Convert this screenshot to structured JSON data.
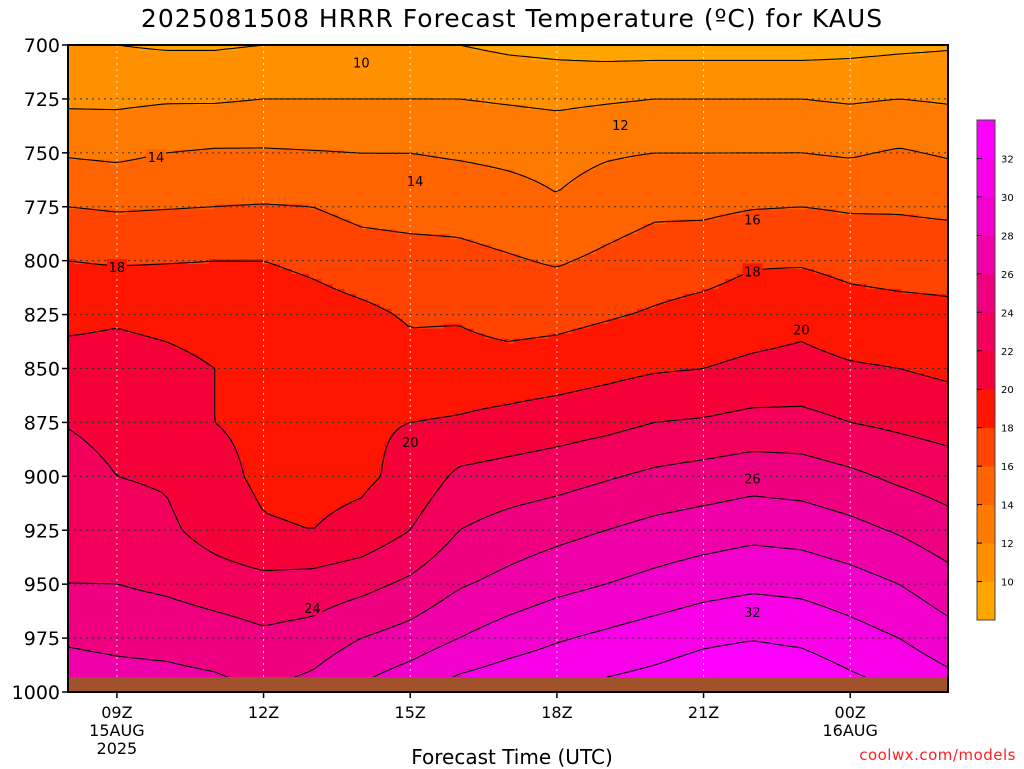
{
  "page": {
    "title": "2025081508 HRRR Forecast Temperature (ºC) for KAUS",
    "credit": "coolwx.com/models"
  },
  "chart_data": {
    "type": "heatmap",
    "title": "2025081508 HRRR Forecast Temperature (ºC) for KAUS",
    "xlabel": "Forecast Time (UTC)",
    "ylabel": "",
    "x_hours": [
      8,
      9,
      10,
      11,
      12,
      13,
      14,
      15,
      16,
      17,
      18,
      19,
      20,
      21,
      22,
      23,
      24,
      25,
      26
    ],
    "x_range": [
      8,
      26
    ],
    "y_range": [
      700,
      1000
    ],
    "y_scale": "pressure-hPa-inverted",
    "x_ticks": [
      {
        "hour": 9,
        "labels": [
          "09Z",
          "15AUG",
          "2025"
        ]
      },
      {
        "hour": 12,
        "labels": [
          "12Z"
        ]
      },
      {
        "hour": 15,
        "labels": [
          "15Z"
        ]
      },
      {
        "hour": 18,
        "labels": [
          "18Z"
        ]
      },
      {
        "hour": 21,
        "labels": [
          "21Z"
        ]
      },
      {
        "hour": 24,
        "labels": [
          "00Z",
          "16AUG"
        ]
      }
    ],
    "y_ticks": [
      "700",
      "725",
      "750",
      "775",
      "800",
      "825",
      "850",
      "875",
      "900",
      "925",
      "950",
      "975",
      "1000"
    ],
    "grid": true,
    "ground_color": "#a0522d",
    "contour_interval": 2,
    "contour_labels": [
      {
        "text": "10",
        "hour": 14.0,
        "level": 708
      },
      {
        "text": "12",
        "hour": 19.3,
        "level": 737
      },
      {
        "text": "14",
        "hour": 9.8,
        "level": 752
      },
      {
        "text": "14",
        "hour": 15.1,
        "level": 763
      },
      {
        "text": "16",
        "hour": 22.0,
        "level": 781
      },
      {
        "text": "18",
        "hour": 9.0,
        "level": 803
      },
      {
        "text": "18",
        "hour": 22.0,
        "level": 805
      },
      {
        "text": "20",
        "hour": 23.0,
        "level": 832
      },
      {
        "text": "20",
        "hour": 15.0,
        "level": 884
      },
      {
        "text": "24",
        "hour": 13.0,
        "level": 961
      },
      {
        "text": "26",
        "hour": 22.0,
        "level": 901
      },
      {
        "text": "32",
        "hour": 22.0,
        "level": 963
      }
    ],
    "legend": {
      "placement": "right",
      "ticks": [
        "10",
        "12",
        "14",
        "16",
        "18",
        "20",
        "22",
        "24",
        "26",
        "28",
        "30",
        "32"
      ],
      "bands": [
        {
          "min": 8,
          "max": 10,
          "color": "#ffa500"
        },
        {
          "min": 10,
          "max": 12,
          "color": "#ff9000"
        },
        {
          "min": 12,
          "max": 14,
          "color": "#ff7a00"
        },
        {
          "min": 14,
          "max": 16,
          "color": "#ff6400"
        },
        {
          "min": 16,
          "max": 18,
          "color": "#ff4300"
        },
        {
          "min": 18,
          "max": 20,
          "color": "#ff1500"
        },
        {
          "min": 20,
          "max": 22,
          "color": "#f6003a"
        },
        {
          "min": 22,
          "max": 24,
          "color": "#f2005c"
        },
        {
          "min": 24,
          "max": 26,
          "color": "#ee0080"
        },
        {
          "min": 26,
          "max": 28,
          "color": "#f000a8"
        },
        {
          "min": 28,
          "max": 30,
          "color": "#f200cc"
        },
        {
          "min": 30,
          "max": 32,
          "color": "#f800e8"
        },
        {
          "min": 32,
          "max": 34,
          "color": "#ff00ff"
        }
      ]
    },
    "profiles": [
      {
        "hour": 8,
        "levels": [
          700,
          725,
          750,
          775,
          800,
          825,
          850,
          875,
          900,
          925,
          950,
          975,
          1000
        ],
        "temps": [
          10.0,
          11.6,
          13.8,
          16.0,
          18.0,
          19.6,
          20.6,
          21.8,
          23.6,
          23.6,
          24.0,
          25.8,
          27.0
        ]
      },
      {
        "hour": 9,
        "levels": [
          700,
          725,
          750,
          775,
          800,
          825,
          850,
          875,
          900,
          925,
          950,
          975,
          1000
        ],
        "temps": [
          10.0,
          11.6,
          13.6,
          15.8,
          17.8,
          19.8,
          20.6,
          20.8,
          22.0,
          22.8,
          24.0,
          25.6,
          26.8
        ]
      },
      {
        "hour": 10,
        "levels": [
          700,
          725,
          750,
          775,
          800,
          825,
          850,
          875,
          900,
          925,
          950,
          975,
          1000
        ],
        "temps": [
          9.8,
          11.8,
          14.0,
          15.9,
          17.9,
          19.6,
          20.4,
          20.4,
          21.8,
          22.4,
          23.6,
          25.4,
          26.8
        ]
      },
      {
        "hour": 11,
        "levels": [
          700,
          725,
          750,
          775,
          800,
          825,
          850,
          875,
          900,
          925,
          950,
          975,
          1000
        ],
        "temps": [
          9.8,
          11.8,
          14.2,
          16.0,
          18.0,
          19.4,
          20.0,
          20.0,
          20.6,
          21.2,
          23.0,
          25.0,
          26.6
        ]
      },
      {
        "hour": 12,
        "levels": [
          700,
          725,
          750,
          775,
          800,
          825,
          850,
          875,
          900,
          925,
          950,
          975,
          1000
        ],
        "temps": [
          10.0,
          12.0,
          14.2,
          16.1,
          18.0,
          19.2,
          19.8,
          19.6,
          19.6,
          20.2,
          22.6,
          24.4,
          26.0
        ]
      },
      {
        "hour": 13,
        "levels": [
          700,
          725,
          750,
          775,
          800,
          825,
          850,
          875,
          900,
          925,
          950,
          975,
          1000
        ],
        "temps": [
          10.0,
          12.0,
          14.1,
          16.0,
          17.6,
          18.8,
          20.0,
          19.6,
          19.4,
          20.0,
          22.8,
          24.8,
          26.8
        ]
      },
      {
        "hour": 14,
        "levels": [
          700,
          725,
          750,
          775,
          800,
          825,
          850,
          875,
          900,
          925,
          950,
          975,
          1000
        ],
        "temps": [
          10.0,
          12.0,
          14.0,
          15.4,
          17.0,
          18.4,
          19.4,
          19.8,
          19.6,
          20.6,
          23.4,
          26.0,
          28.4
        ]
      },
      {
        "hour": 15,
        "levels": [
          700,
          725,
          750,
          775,
          800,
          825,
          850,
          875,
          900,
          925,
          950,
          975,
          1000
        ],
        "temps": [
          10.0,
          12.0,
          14.0,
          15.2,
          16.8,
          17.8,
          18.6,
          20.0,
          20.6,
          22.0,
          24.4,
          26.8,
          29.6
        ]
      },
      {
        "hour": 16,
        "levels": [
          700,
          725,
          750,
          775,
          800,
          825,
          850,
          875,
          900,
          925,
          950,
          975,
          1000
        ],
        "temps": [
          10.0,
          12.0,
          13.8,
          15.2,
          16.6,
          17.8,
          18.8,
          20.2,
          22.4,
          24.0,
          25.8,
          28.0,
          31.0
        ]
      },
      {
        "hour": 17,
        "levels": [
          700,
          725,
          750,
          775,
          800,
          825,
          850,
          875,
          900,
          925,
          950,
          975,
          1000
        ],
        "temps": [
          9.6,
          11.8,
          13.6,
          14.8,
          16.2,
          17.2,
          18.8,
          20.6,
          22.8,
          24.8,
          26.6,
          29.0,
          31.6
        ]
      },
      {
        "hour": 18,
        "levels": [
          700,
          725,
          750,
          775,
          800,
          825,
          850,
          875,
          900,
          925,
          950,
          975,
          1000
        ],
        "temps": [
          9.4,
          11.6,
          13.4,
          14.2,
          15.8,
          17.4,
          19.0,
          21.0,
          23.2,
          25.4,
          27.4,
          29.8,
          32.0
        ]
      },
      {
        "hour": 19,
        "levels": [
          700,
          725,
          750,
          775,
          800,
          825,
          850,
          875,
          900,
          925,
          950,
          975,
          1000
        ],
        "temps": [
          9.2,
          11.8,
          13.8,
          15.0,
          16.4,
          17.8,
          19.4,
          21.4,
          23.8,
          26.0,
          28.0,
          30.4,
          32.6
        ]
      },
      {
        "hour": 20,
        "levels": [
          700,
          725,
          750,
          775,
          800,
          825,
          850,
          875,
          900,
          925,
          950,
          975,
          1000
        ],
        "temps": [
          9.2,
          12.0,
          14.0,
          15.6,
          17.0,
          18.2,
          19.8,
          22.0,
          24.4,
          26.6,
          28.6,
          31.0,
          33.0
        ]
      },
      {
        "hour": 21,
        "levels": [
          700,
          725,
          750,
          775,
          800,
          825,
          850,
          875,
          900,
          925,
          950,
          975,
          1000
        ],
        "temps": [
          9.2,
          12.0,
          14.0,
          15.6,
          17.2,
          18.6,
          20.0,
          22.2,
          24.8,
          27.0,
          29.2,
          31.6,
          33.6
        ]
      },
      {
        "hour": 22,
        "levels": [
          700,
          725,
          750,
          775,
          800,
          825,
          850,
          875,
          900,
          925,
          950,
          975,
          1000
        ],
        "temps": [
          9.2,
          12.0,
          14.0,
          15.9,
          17.8,
          19.0,
          20.4,
          22.6,
          25.2,
          27.4,
          29.6,
          31.9,
          34.0
        ]
      },
      {
        "hour": 23,
        "levels": [
          700,
          725,
          750,
          775,
          800,
          825,
          850,
          875,
          900,
          925,
          950,
          975,
          1000
        ],
        "temps": [
          9.2,
          12.0,
          14.0,
          16.0,
          17.8,
          19.4,
          20.6,
          22.6,
          25.0,
          27.2,
          29.4,
          31.6,
          33.8
        ]
      },
      {
        "hour": 24,
        "levels": [
          700,
          725,
          750,
          775,
          800,
          825,
          850,
          875,
          900,
          925,
          950,
          975,
          1000
        ],
        "temps": [
          9.4,
          11.8,
          13.8,
          15.8,
          17.4,
          18.8,
          20.2,
          22.0,
          24.4,
          26.6,
          28.8,
          30.8,
          32.8
        ]
      },
      {
        "hour": 25,
        "levels": [
          700,
          725,
          750,
          775,
          800,
          825,
          850,
          875,
          900,
          925,
          950,
          975,
          1000
        ],
        "temps": [
          9.6,
          12.0,
          14.2,
          15.8,
          17.2,
          18.6,
          20.0,
          21.6,
          23.6,
          25.8,
          28.0,
          30.0,
          32.0
        ]
      },
      {
        "hour": 26,
        "levels": [
          700,
          725,
          750,
          775,
          800,
          825,
          850,
          875,
          900,
          925,
          950,
          975,
          1000
        ],
        "temps": [
          9.8,
          11.8,
          13.8,
          15.6,
          17.2,
          18.4,
          19.6,
          21.2,
          23.0,
          24.8,
          26.8,
          28.8,
          31.0
        ]
      }
    ]
  }
}
